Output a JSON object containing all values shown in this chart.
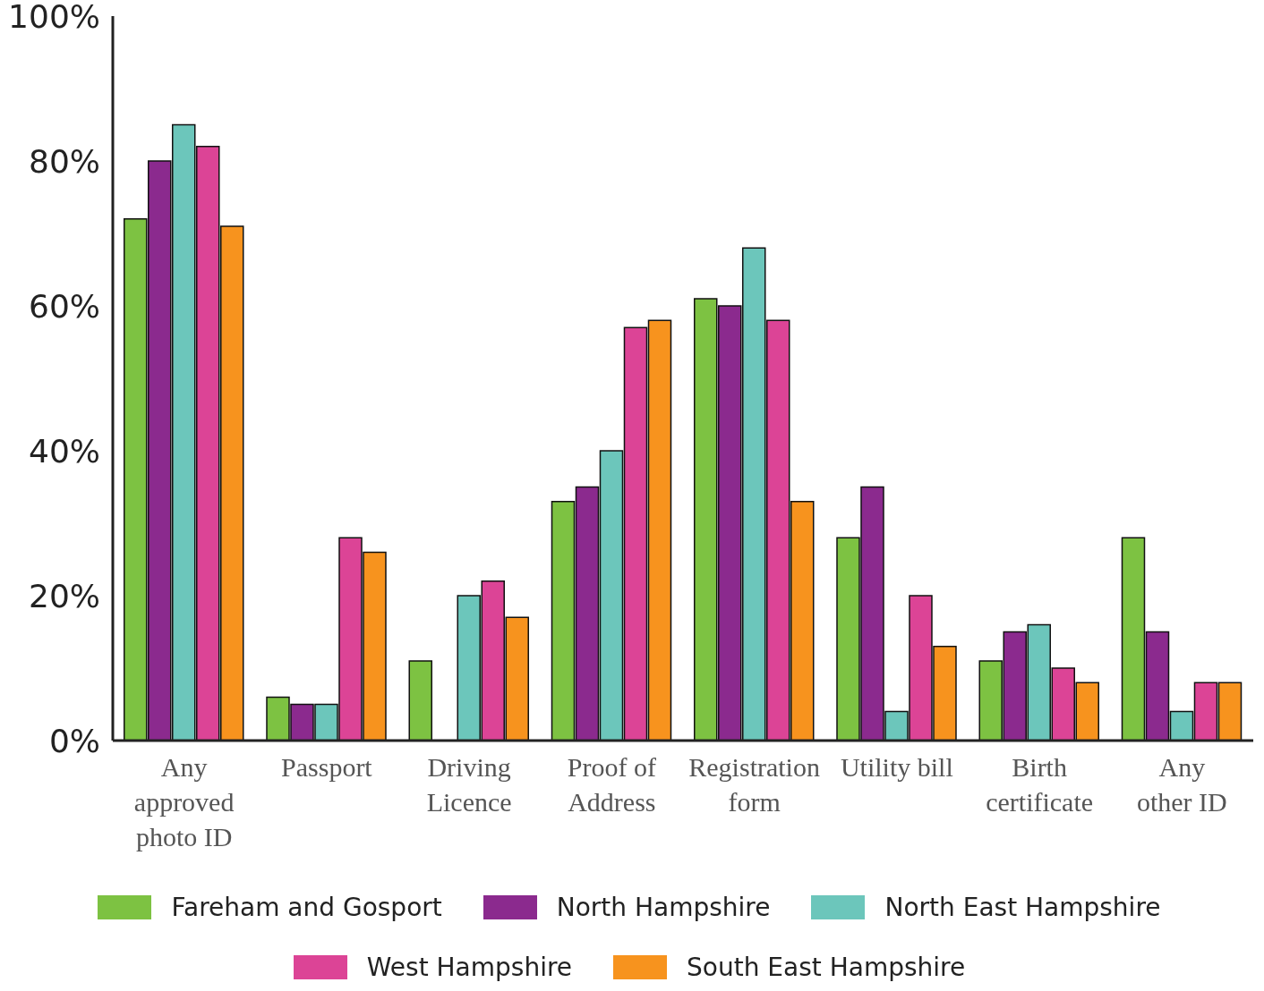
{
  "chart_data": {
    "type": "bar",
    "categories": [
      "Any\napproved\nphoto ID",
      "Passport",
      "Driving\nLicence",
      "Proof of\nAddress",
      "Registration\nform",
      "Utility bill",
      "Birth\ncertificate",
      "Any\nother ID"
    ],
    "series": [
      {
        "name": "Fareham and Gosport",
        "color": "#7dc242",
        "values": [
          72,
          6,
          11,
          33,
          61,
          28,
          11,
          28
        ]
      },
      {
        "name": "North Hampshire",
        "color": "#8b2a8e",
        "values": [
          80,
          5,
          0,
          35,
          60,
          35,
          15,
          15
        ]
      },
      {
        "name": "North East Hampshire",
        "color": "#6cc6bb",
        "values": [
          85,
          5,
          20,
          40,
          68,
          4,
          16,
          4
        ]
      },
      {
        "name": "West Hampshire",
        "color": "#dc4496",
        "values": [
          82,
          28,
          22,
          57,
          58,
          20,
          10,
          8
        ]
      },
      {
        "name": "South East Hampshire",
        "color": "#f7931e",
        "values": [
          71,
          26,
          17,
          58,
          33,
          13,
          8,
          8
        ]
      }
    ],
    "ylim": [
      0,
      100
    ],
    "yticks": [
      {
        "value": 0,
        "label": "0%"
      },
      {
        "value": 20,
        "label": "20%"
      },
      {
        "value": 40,
        "label": "40%"
      },
      {
        "value": 60,
        "label": "60%"
      },
      {
        "value": 80,
        "label": "80%"
      },
      {
        "value": 100,
        "label": "100%"
      }
    ],
    "grid": false,
    "legend": "bottom"
  }
}
